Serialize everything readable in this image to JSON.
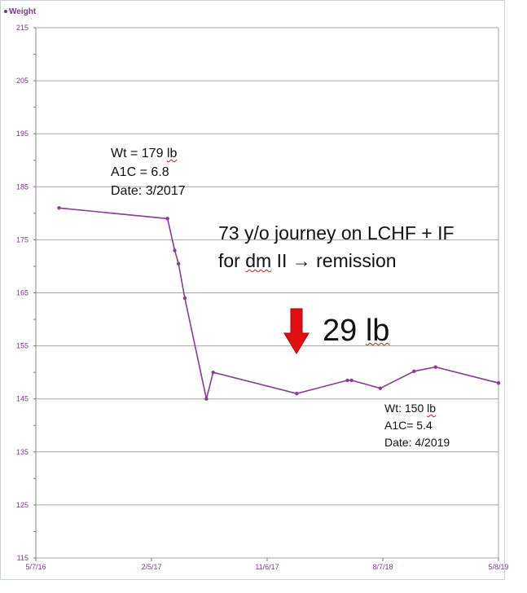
{
  "chart_data": {
    "type": "line",
    "title": "",
    "xlabel": "",
    "ylabel": "",
    "series": [
      {
        "name": "Weight",
        "color": "#8b3a9a",
        "points": [
          {
            "x": "2016-07-01",
            "y": 181
          },
          {
            "x": "2017-03-15",
            "y": 179
          },
          {
            "x": "2017-04-01",
            "y": 173
          },
          {
            "x": "2017-04-10",
            "y": 170.5
          },
          {
            "x": "2017-04-25",
            "y": 164
          },
          {
            "x": "2017-06-15",
            "y": 145
          },
          {
            "x": "2017-07-01",
            "y": 150
          },
          {
            "x": "2018-01-15",
            "y": 146
          },
          {
            "x": "2018-05-15",
            "y": 148.5
          },
          {
            "x": "2018-05-25",
            "y": 148.5
          },
          {
            "x": "2018-08-01",
            "y": 147
          },
          {
            "x": "2018-10-20",
            "y": 150.2
          },
          {
            "x": "2018-12-10",
            "y": 151
          },
          {
            "x": "2019-05-08",
            "y": 148
          }
        ]
      }
    ],
    "ylim": [
      115,
      215
    ],
    "yticks": [
      115,
      125,
      135,
      145,
      155,
      165,
      175,
      185,
      195,
      205,
      215
    ],
    "xlim": [
      "2016-05-07",
      "2019-05-08"
    ],
    "xticks": [
      {
        "value": "2016-05-07",
        "label": "5/7/16"
      },
      {
        "value": "2017-02-05",
        "label": "2/5/17"
      },
      {
        "value": "2017-11-06",
        "label": "11/6/17"
      },
      {
        "value": "2018-08-07",
        "label": "8/7/18"
      },
      {
        "value": "2019-05-08",
        "label": "5/8/19"
      }
    ],
    "grid": true,
    "legend": "top-left"
  },
  "legend_label": "Weight",
  "annotations": {
    "start": {
      "line1_prefix": "Wt = 179 ",
      "line1_unit": "lb",
      "line2": "A1C = 6.8",
      "line3": "Date: 3/2017"
    },
    "title": {
      "line1": "73 y/o journey on LCHF + IF",
      "line2_prefix": "for ",
      "line2_squiggle": "dm",
      "line2_suffix": " II → remission"
    },
    "loss": {
      "value": "29 ",
      "unit": "lb"
    },
    "end": {
      "line1_prefix": "Wt: 150 ",
      "line1_unit": "lb",
      "line2": "A1C= 5.4",
      "line3": "Date: 4/2019"
    }
  },
  "colors": {
    "line": "#8b3a9a",
    "tick_text": "#7a3a87",
    "grid": "#a6a6a6",
    "arrow": "#e01010"
  }
}
